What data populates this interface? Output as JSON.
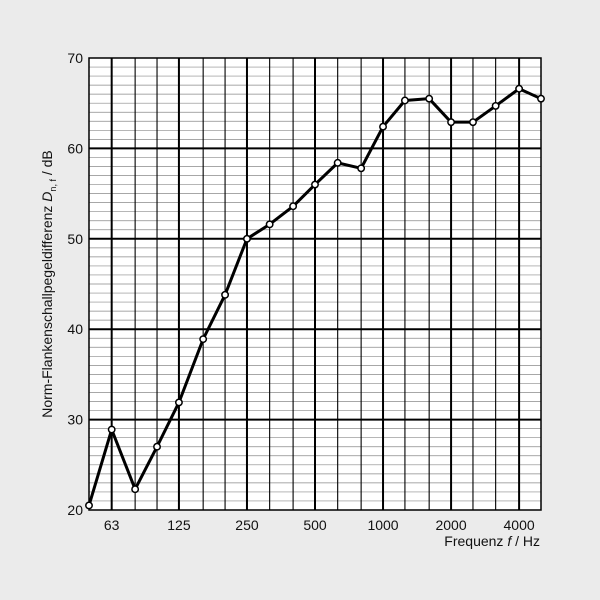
{
  "chart_data": {
    "type": "line",
    "xscale": "log",
    "xlim": [
      50,
      5000
    ],
    "ylim": [
      20,
      70
    ],
    "grid": true,
    "xlabel": {
      "prefix": "Frequenz ",
      "var": "f",
      "suffix": " / Hz"
    },
    "ylabel": {
      "prefix": "Norm-Flankenschallpegeldifferenz ",
      "var": "D",
      "sub": "n, f",
      "suffix": " / dB"
    },
    "x_ticks": [
      63,
      125,
      250,
      500,
      1000,
      2000,
      4000
    ],
    "y_ticks": [
      20,
      30,
      40,
      50,
      60,
      70
    ],
    "series": [
      {
        "x": [
          50,
          63,
          80,
          100,
          125,
          160,
          200,
          250,
          315,
          400,
          500,
          630,
          800,
          1000,
          1250,
          1600,
          2000,
          2500,
          3150,
          4000,
          5000
        ],
        "values": [
          20.5,
          28.9,
          22.3,
          27.0,
          31.9,
          38.9,
          43.8,
          50.0,
          51.6,
          53.6,
          56.0,
          58.4,
          57.8,
          62.4,
          65.3,
          65.5,
          62.9,
          62.9,
          64.7,
          66.6,
          65.5
        ]
      }
    ],
    "color": "#000000",
    "background": "#ebebeb",
    "plot_background": "#ffffff"
  }
}
